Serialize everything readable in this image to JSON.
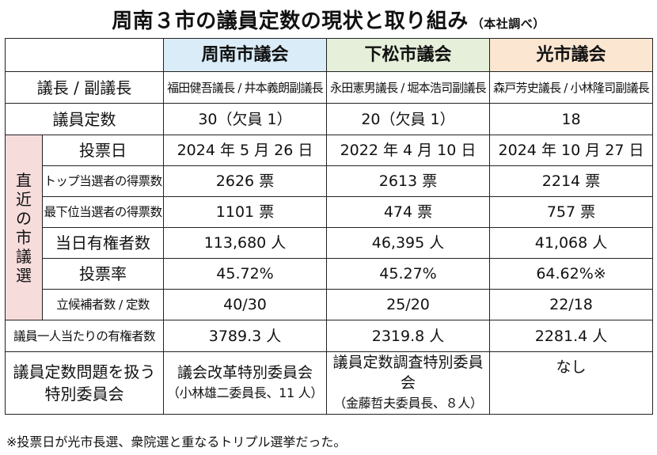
{
  "title": "周南３市の議員定数の現状と取り組み",
  "title_note": "（本社調べ）",
  "columns": [
    "周南市議会",
    "下松市議会",
    "光市議会"
  ],
  "colors": {
    "shunan": "#d9ecf8",
    "kudamatsu": "#e5efd9",
    "hikari": "#fbe6d1",
    "election_group": "#f7dcdc"
  },
  "election_group_label": [
    "直",
    "近",
    "の",
    "市",
    "議",
    "選"
  ],
  "rows": {
    "chair": {
      "label": "議長 / 副議長",
      "values": [
        "福田健吾議長 / 井本義朗副議長",
        "永田憲男議長 / 堀本浩司副議長",
        "森戸芳史議長 / 小林隆司副議長"
      ]
    },
    "seats": {
      "label": "議員定数",
      "values": [
        "30（欠員 1）",
        "20（欠員 1）",
        "18"
      ]
    },
    "vote_date": {
      "label": "投票日",
      "values": [
        "2024 年 5 月 26 日",
        "2022 年 4 月 10 日",
        "2024 年 10 月 27 日"
      ]
    },
    "top_votes": {
      "label": "トップ当選者の得票数",
      "values": [
        "2626 票",
        "2613 票",
        "2214 票"
      ]
    },
    "lowest_votes": {
      "label": "最下位当選者の得票数",
      "values": [
        "1101 票",
        "474 票",
        "757 票"
      ]
    },
    "voters": {
      "label": "当日有権者数",
      "values": [
        "113,680 人",
        "46,395 人",
        "41,068 人"
      ]
    },
    "turnout": {
      "label": "投票率",
      "values": [
        "45.72%",
        "45.27%",
        "64.62%※"
      ]
    },
    "candidates": {
      "label": "立候補者数 / 定数",
      "values": [
        "40/30",
        "25/20",
        "22/18"
      ]
    },
    "per_member": {
      "label": "議員一人当たりの有権者数",
      "values": [
        "3789.3 人",
        "2319.8 人",
        "2281.4 人"
      ]
    },
    "committee": {
      "label_line1": "議員定数問題を扱う",
      "label_line2": "特別委員会",
      "values": [
        {
          "line1": "議会改革特別委員会",
          "line2": "（小林雄二委員長、11 人）"
        },
        {
          "line1": "議員定数調査特別委員会",
          "line2": "（金藤哲夫委員長、８人）"
        },
        {
          "line1": "なし",
          "line2": ""
        }
      ]
    }
  },
  "footnote": "※投票日が光市長選、衆院選と重なるトリプル選挙だった。"
}
